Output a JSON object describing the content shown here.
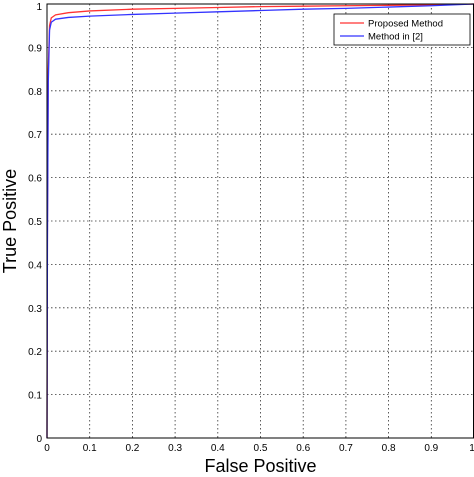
{
  "chart_data": {
    "type": "line",
    "title": "",
    "xlabel": "False Positive",
    "ylabel": "True Positive",
    "xlim": [
      0,
      1
    ],
    "ylim": [
      0,
      1
    ],
    "xticks": [
      "0",
      "0.1",
      "0.2",
      "0.3",
      "0.4",
      "0.5",
      "0.6",
      "0.7",
      "0.8",
      "0.9",
      "1"
    ],
    "yticks": [
      "0",
      "0.1",
      "0.2",
      "0.3",
      "0.4",
      "0.5",
      "0.6",
      "0.7",
      "0.8",
      "0.9",
      "1"
    ],
    "grid": true,
    "legend_position": "top-right",
    "series": [
      {
        "name": "Proposed Method",
        "color": "#ff3333",
        "points": [
          [
            0,
            0
          ],
          [
            0.001,
            0.5
          ],
          [
            0.003,
            0.85
          ],
          [
            0.006,
            0.95
          ],
          [
            0.01,
            0.968
          ],
          [
            0.02,
            0.975
          ],
          [
            0.05,
            0.98
          ],
          [
            0.1,
            0.984
          ],
          [
            0.2,
            0.988
          ],
          [
            0.3,
            0.99
          ],
          [
            0.4,
            0.992
          ],
          [
            0.5,
            0.994
          ],
          [
            0.6,
            0.995
          ],
          [
            0.7,
            0.996
          ],
          [
            0.8,
            0.997
          ],
          [
            0.9,
            0.998
          ],
          [
            1,
            1
          ]
        ]
      },
      {
        "name": "Method in [2]",
        "color": "#3333ff",
        "points": [
          [
            0,
            0
          ],
          [
            0.001,
            0.45
          ],
          [
            0.003,
            0.82
          ],
          [
            0.006,
            0.94
          ],
          [
            0.01,
            0.958
          ],
          [
            0.02,
            0.965
          ],
          [
            0.05,
            0.969
          ],
          [
            0.1,
            0.972
          ],
          [
            0.2,
            0.976
          ],
          [
            0.3,
            0.979
          ],
          [
            0.4,
            0.982
          ],
          [
            0.5,
            0.985
          ],
          [
            0.6,
            0.988
          ],
          [
            0.7,
            0.99
          ],
          [
            0.8,
            0.993
          ],
          [
            0.9,
            0.996
          ],
          [
            1,
            1
          ]
        ]
      }
    ]
  }
}
